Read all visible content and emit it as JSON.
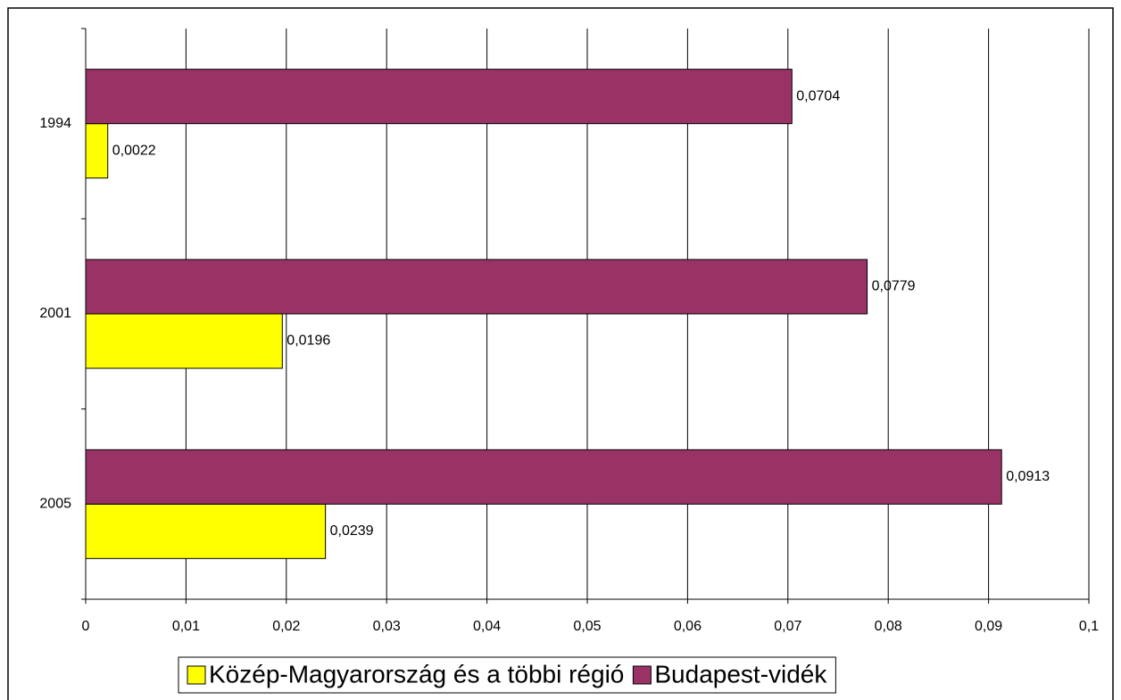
{
  "chart_data": {
    "type": "barh",
    "categories": [
      "1994",
      "2001",
      "2005"
    ],
    "series": [
      {
        "name": "Közép-Magyarország és a többi régió",
        "color": "#ffff00",
        "values": [
          0.0022,
          0.0196,
          0.0239
        ],
        "value_labels": [
          "0,0022",
          "0,0196",
          "0,0239"
        ]
      },
      {
        "name": "Budapest-vidék",
        "color": "#993366",
        "values": [
          0.0704,
          0.0779,
          0.0913
        ],
        "value_labels": [
          "0,0704",
          "0,0779",
          "0,0913"
        ]
      }
    ],
    "xlim": [
      0,
      0.1
    ],
    "xticks": [
      0,
      {
        "value": 0.01,
        "label": "0,01"
      },
      {
        "value": 0.02,
        "label": "0,02"
      },
      {
        "value": 0.03,
        "label": "0,03"
      },
      {
        "value": 0.04,
        "label": "0,04"
      },
      {
        "value": 0.05,
        "label": "0,05"
      },
      {
        "value": 0.06,
        "label": "0,06"
      },
      {
        "value": 0.07,
        "label": "0,07"
      },
      {
        "value": 0.08,
        "label": "0,08"
      },
      {
        "value": 0.09,
        "label": "0,09"
      },
      {
        "value": 0.1,
        "label": "0,1"
      }
    ],
    "grid": true,
    "legend": "bottom"
  }
}
